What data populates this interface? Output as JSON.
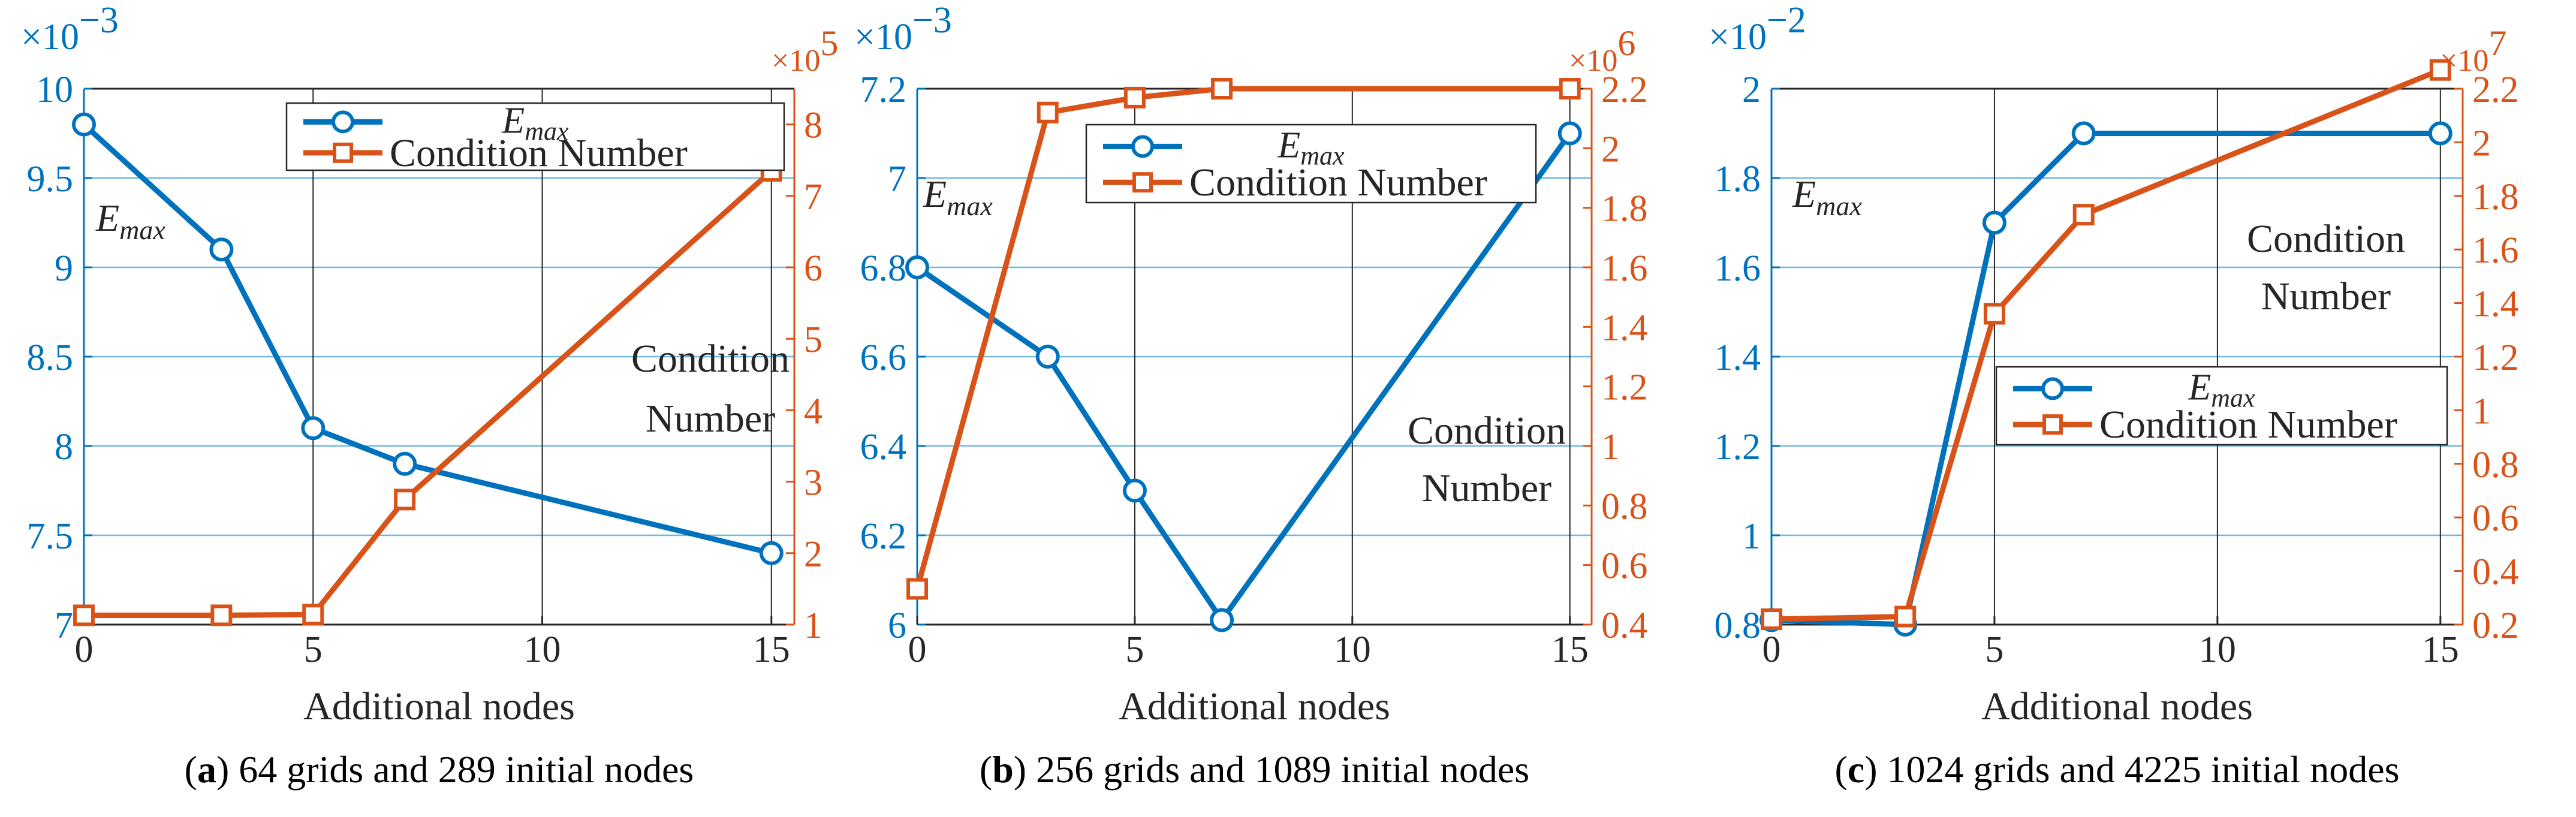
{
  "colors": {
    "emax": "#0072BD",
    "cond": "#D95319",
    "grid": "#6fb8e0",
    "axis": "#262626"
  },
  "chart_data": [
    {
      "type": "line",
      "caption_label": "a",
      "caption_text": " 64 grids and 289 initial nodes",
      "xlabel": "Additional nodes",
      "x": [
        0,
        3,
        5,
        7,
        15
      ],
      "xticks": [
        "0",
        "5",
        "10",
        "15"
      ],
      "left_axis": {
        "label_main": "E",
        "label_sub": "max",
        "exponent_base": "×10",
        "exponent_power": "−3",
        "ylim": [
          7,
          10
        ],
        "ticks": [
          7,
          7.5,
          8,
          8.5,
          9,
          9.5,
          10
        ],
        "tick_labels": [
          "7",
          "7.5",
          "8",
          "8.5",
          "9",
          "9.5",
          "10"
        ]
      },
      "right_axis": {
        "label": [
          "Condition",
          "Number"
        ],
        "exponent_base": "×10",
        "exponent_power": "5",
        "ylim": [
          1,
          8.5
        ],
        "ticks": [
          1,
          2,
          3,
          4,
          5,
          6,
          7,
          8
        ],
        "tick_labels": [
          "1",
          "2",
          "3",
          "4",
          "5",
          "6",
          "7",
          "8"
        ]
      },
      "series": [
        {
          "name": "E",
          "name_sub": "max",
          "axis": "left",
          "marker": "circle",
          "values": [
            9.8,
            9.1,
            8.1,
            7.9,
            7.4
          ]
        },
        {
          "name": "Condition Number",
          "axis": "right",
          "marker": "square",
          "values": [
            1.13,
            1.13,
            1.14,
            2.75,
            7.35
          ]
        }
      ]
    },
    {
      "type": "line",
      "caption_label": "b",
      "caption_text": " 256 grids and 1089 initial nodes",
      "xlabel": "Additional nodes",
      "x": [
        0,
        3,
        5,
        7,
        15
      ],
      "xticks": [
        "0",
        "5",
        "10",
        "15"
      ],
      "left_axis": {
        "label_main": "E",
        "label_sub": "max",
        "exponent_base": "×10",
        "exponent_power": "−3",
        "ylim": [
          6,
          7.2
        ],
        "ticks": [
          6,
          6.2,
          6.4,
          6.6,
          6.8,
          7,
          7.2
        ],
        "tick_labels": [
          "6",
          "6.2",
          "6.4",
          "6.6",
          "6.8",
          "7",
          "7.2"
        ]
      },
      "right_axis": {
        "label": [
          "Condition",
          "Number"
        ],
        "exponent_base": "×10",
        "exponent_power": "6",
        "ylim": [
          0.4,
          2.2
        ],
        "ticks": [
          0.4,
          0.6,
          0.8,
          1,
          1.2,
          1.4,
          1.6,
          1.8,
          2,
          2.2
        ],
        "tick_labels": [
          "0.4",
          "0.6",
          "0.8",
          "1",
          "1.2",
          "1.4",
          "1.6",
          "1.8",
          "2",
          "2.2"
        ]
      },
      "series": [
        {
          "name": "E",
          "name_sub": "max",
          "axis": "left",
          "marker": "circle",
          "values": [
            6.8,
            6.6,
            6.3,
            6.01,
            7.1
          ]
        },
        {
          "name": "Condition Number",
          "axis": "right",
          "marker": "square",
          "values": [
            0.52,
            2.12,
            2.17,
            2.2,
            2.2
          ]
        }
      ]
    },
    {
      "type": "line",
      "caption_label": "c",
      "caption_text": " 1024 grids and 4225 initial nodes",
      "xlabel": "Additional nodes",
      "x": [
        0,
        3,
        5,
        7,
        15
      ],
      "xticks": [
        "0",
        "5",
        "10",
        "15"
      ],
      "left_axis": {
        "label_main": "E",
        "label_sub": "max",
        "exponent_base": "×10",
        "exponent_power": "−2",
        "ylim": [
          0.8,
          2
        ],
        "ticks": [
          0.8,
          1,
          1.2,
          1.4,
          1.6,
          1.8,
          2
        ],
        "tick_labels": [
          "0.8",
          "1",
          "1.2",
          "1.4",
          "1.6",
          "1.8",
          "2"
        ]
      },
      "right_axis": {
        "label": [
          "Condition",
          "Number"
        ],
        "exponent_base": "×10",
        "exponent_power": "7",
        "ylim": [
          0.2,
          2.2
        ],
        "ticks": [
          0.2,
          0.4,
          0.6,
          0.8,
          1,
          1.2,
          1.4,
          1.6,
          1.8,
          2,
          2.2
        ],
        "tick_labels": [
          "0.2",
          "0.4",
          "0.6",
          "0.8",
          "1",
          "1.2",
          "1.4",
          "1.6",
          "1.8",
          "2",
          "2.2"
        ]
      },
      "series": [
        {
          "name": "E",
          "name_sub": "max",
          "axis": "left",
          "marker": "circle",
          "values": [
            0.81,
            0.8,
            1.7,
            1.9,
            1.9
          ]
        },
        {
          "name": "Condition Number",
          "axis": "right",
          "marker": "square",
          "values": [
            0.22,
            0.23,
            1.36,
            1.73,
            2.27
          ]
        }
      ]
    }
  ]
}
